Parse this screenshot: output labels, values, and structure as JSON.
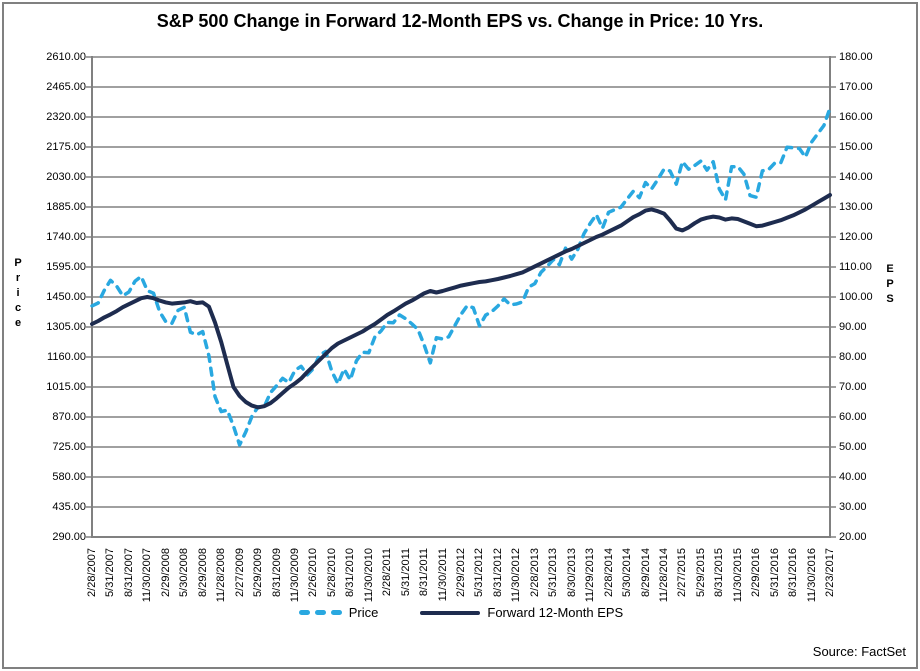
{
  "title": "S&P 500 Change in Forward 12-Month EPS vs. Change in Price: 10 Yrs.",
  "source": "Source: FactSet",
  "colors": {
    "price_line": "#29A8E0",
    "eps_line": "#1E2C4F",
    "grid": "#808080",
    "text": "#000000",
    "frame_border": "#808080",
    "background": "#FFFFFF"
  },
  "legend": [
    {
      "label": "Price",
      "style": "dashed",
      "color": "#29A8E0"
    },
    {
      "label": "Forward 12-Month EPS",
      "style": "solid",
      "color": "#1E2C4F"
    }
  ],
  "left_axis": {
    "title": "Price",
    "min": 290,
    "max": 2610,
    "step": 145,
    "tick_labels": [
      "2610.00",
      "2465.00",
      "2320.00",
      "2175.00",
      "2030.00",
      "1885.00",
      "1740.00",
      "1595.00",
      "1450.00",
      "1305.00",
      "1160.00",
      "1015.00",
      "870.00",
      "725.00",
      "580.00",
      "435.00",
      "290.00"
    ]
  },
  "right_axis": {
    "title": "EPS",
    "min": 20,
    "max": 180,
    "step": 10,
    "tick_labels": [
      "180.00",
      "170.00",
      "160.00",
      "150.00",
      "140.00",
      "130.00",
      "120.00",
      "110.00",
      "100.00",
      "90.00",
      "80.00",
      "70.00",
      "60.00",
      "50.00",
      "40.00",
      "30.00",
      "20.00"
    ]
  },
  "chart_data": {
    "type": "line",
    "grid": "horizontal",
    "legend_position": "bottom",
    "x_is_monthly_from": "2/2007",
    "x_tick_every_n_points": 3,
    "x_tick_labels": [
      "2/28/2007",
      "5/31/2007",
      "8/31/2007",
      "11/30/2007",
      "2/29/2008",
      "5/30/2008",
      "8/29/2008",
      "11/28/2008",
      "2/27/2009",
      "5/29/2009",
      "8/31/2009",
      "11/30/2009",
      "2/26/2010",
      "5/28/2010",
      "8/31/2010",
      "11/30/2010",
      "2/28/2011",
      "5/31/2011",
      "8/31/2011",
      "11/30/2011",
      "2/29/2012",
      "5/31/2012",
      "8/31/2012",
      "11/30/2012",
      "2/28/2013",
      "5/31/2013",
      "8/30/2013",
      "11/29/2013",
      "2/28/2014",
      "5/30/2014",
      "8/29/2014",
      "11/28/2014",
      "2/27/2015",
      "5/29/2015",
      "8/31/2015",
      "11/30/2015",
      "2/29/2016",
      "5/31/2016",
      "8/31/2016",
      "11/30/2016",
      "2/23/2017"
    ],
    "series": [
      {
        "name": "Price",
        "axis": "left",
        "style": "dashed",
        "color": "#29A8E0",
        "values": [
          1406.82,
          1420.86,
          1482.37,
          1530.62,
          1503.35,
          1455.27,
          1473.99,
          1526.75,
          1549.38,
          1481.14,
          1468.36,
          1378.55,
          1330.63,
          1322.7,
          1385.59,
          1400.38,
          1280.0,
          1267.38,
          1282.83,
          1166.36,
          968.75,
          896.24,
          903.25,
          825.88,
          735.09,
          797.87,
          872.81,
          919.14,
          919.32,
          987.48,
          1020.62,
          1057.08,
          1036.19,
          1095.63,
          1115.1,
          1073.87,
          1104.49,
          1169.43,
          1186.69,
          1089.41,
          1030.71,
          1101.6,
          1049.33,
          1141.2,
          1183.26,
          1180.55,
          1257.64,
          1286.12,
          1327.22,
          1325.83,
          1363.61,
          1345.2,
          1320.64,
          1292.28,
          1218.89,
          1131.42,
          1253.3,
          1246.96,
          1257.6,
          1312.41,
          1365.68,
          1408.47,
          1397.91,
          1310.33,
          1362.16,
          1379.32,
          1406.58,
          1440.67,
          1412.16,
          1416.18,
          1426.19,
          1498.11,
          1514.68,
          1569.19,
          1597.57,
          1630.74,
          1606.28,
          1685.73,
          1632.97,
          1681.55,
          1756.54,
          1805.81,
          1848.36,
          1782.59,
          1859.45,
          1872.34,
          1883.95,
          1923.57,
          1960.23,
          1930.67,
          2003.37,
          1972.29,
          2018.05,
          2067.56,
          2058.9,
          1994.99,
          2104.5,
          2067.89,
          2085.51,
          2107.39,
          2063.11,
          2103.84,
          1972.18,
          1920.03,
          2079.36,
          2080.41,
          2043.94,
          1940.24,
          1932.23,
          2059.74,
          2065.3,
          2096.95,
          2098.86,
          2173.6,
          2170.95,
          2168.27,
          2126.15,
          2198.81,
          2238.83,
          2278.87,
          2363.64
        ]
      },
      {
        "name": "Forward 12-Month EPS",
        "axis": "right",
        "style": "solid",
        "color": "#1E2C4F",
        "values": [
          91.0,
          92.0,
          93.2,
          94.2,
          95.3,
          96.6,
          97.6,
          98.6,
          99.6,
          100.0,
          99.6,
          98.8,
          98.2,
          97.8,
          98.0,
          98.2,
          98.6,
          98.0,
          98.2,
          96.8,
          91.5,
          85.0,
          77.5,
          70.0,
          67.0,
          65.0,
          63.8,
          63.2,
          63.6,
          64.6,
          66.2,
          68.0,
          69.8,
          71.2,
          72.8,
          75.0,
          77.0,
          79.0,
          81.0,
          83.0,
          84.5,
          85.5,
          86.5,
          87.5,
          88.5,
          89.8,
          91.0,
          92.5,
          94.0,
          95.2,
          96.5,
          97.8,
          98.8,
          100.0,
          101.2,
          102.0,
          101.5,
          102.0,
          102.6,
          103.2,
          103.8,
          104.2,
          104.6,
          105.0,
          105.2,
          105.6,
          106.0,
          106.5,
          107.0,
          107.6,
          108.2,
          109.2,
          110.2,
          111.2,
          112.2,
          113.2,
          114.2,
          115.2,
          116.0,
          117.0,
          118.0,
          119.0,
          120.0,
          120.8,
          121.8,
          122.8,
          123.8,
          125.2,
          126.6,
          127.6,
          128.8,
          129.2,
          128.6,
          127.8,
          125.5,
          122.8,
          122.2,
          123.2,
          124.6,
          125.8,
          126.4,
          126.8,
          126.5,
          125.8,
          126.2,
          126.0,
          125.2,
          124.4,
          123.6,
          123.8,
          124.4,
          125.0,
          125.6,
          126.4,
          127.2,
          128.2,
          129.2,
          130.4,
          131.6,
          132.8,
          134.0
        ]
      }
    ]
  }
}
